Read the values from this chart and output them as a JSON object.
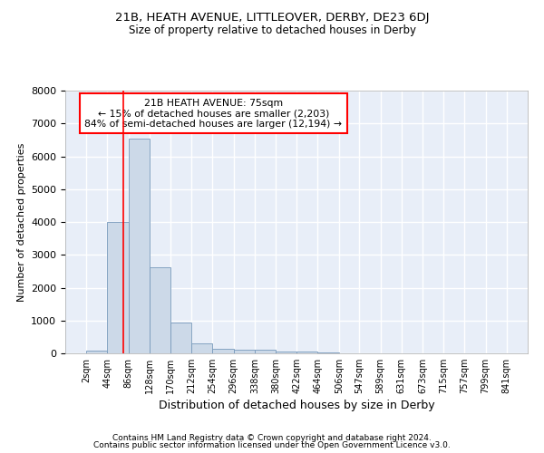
{
  "title1": "21B, HEATH AVENUE, LITTLEOVER, DERBY, DE23 6DJ",
  "title2": "Size of property relative to detached houses in Derby",
  "xlabel": "Distribution of detached houses by size in Derby",
  "ylabel": "Number of detached properties",
  "footer1": "Contains HM Land Registry data © Crown copyright and database right 2024.",
  "footer2": "Contains public sector information licensed under the Open Government Licence v3.0.",
  "bar_color": "#ccd9e8",
  "bar_edge_color": "#7799bb",
  "background_color": "#e8eef8",
  "grid_color": "#ffffff",
  "annotation_line1": "21B HEATH AVENUE: 75sqm",
  "annotation_line2": "← 15% of detached houses are smaller (2,203)",
  "annotation_line3": "84% of semi-detached houses are larger (12,194) →",
  "property_line_x": 75,
  "property_line_color": "red",
  "bin_edges": [
    2,
    44,
    86,
    128,
    170,
    212,
    254,
    296,
    338,
    380,
    422,
    464,
    506,
    547,
    589,
    631,
    673,
    715,
    757,
    799,
    841
  ],
  "bar_heights": [
    80,
    4000,
    6550,
    2620,
    950,
    310,
    135,
    115,
    100,
    55,
    50,
    15,
    8,
    4,
    2,
    1,
    1,
    0,
    0,
    0
  ],
  "ylim": [
    0,
    8000
  ],
  "yticks": [
    0,
    1000,
    2000,
    3000,
    4000,
    5000,
    6000,
    7000,
    8000
  ]
}
